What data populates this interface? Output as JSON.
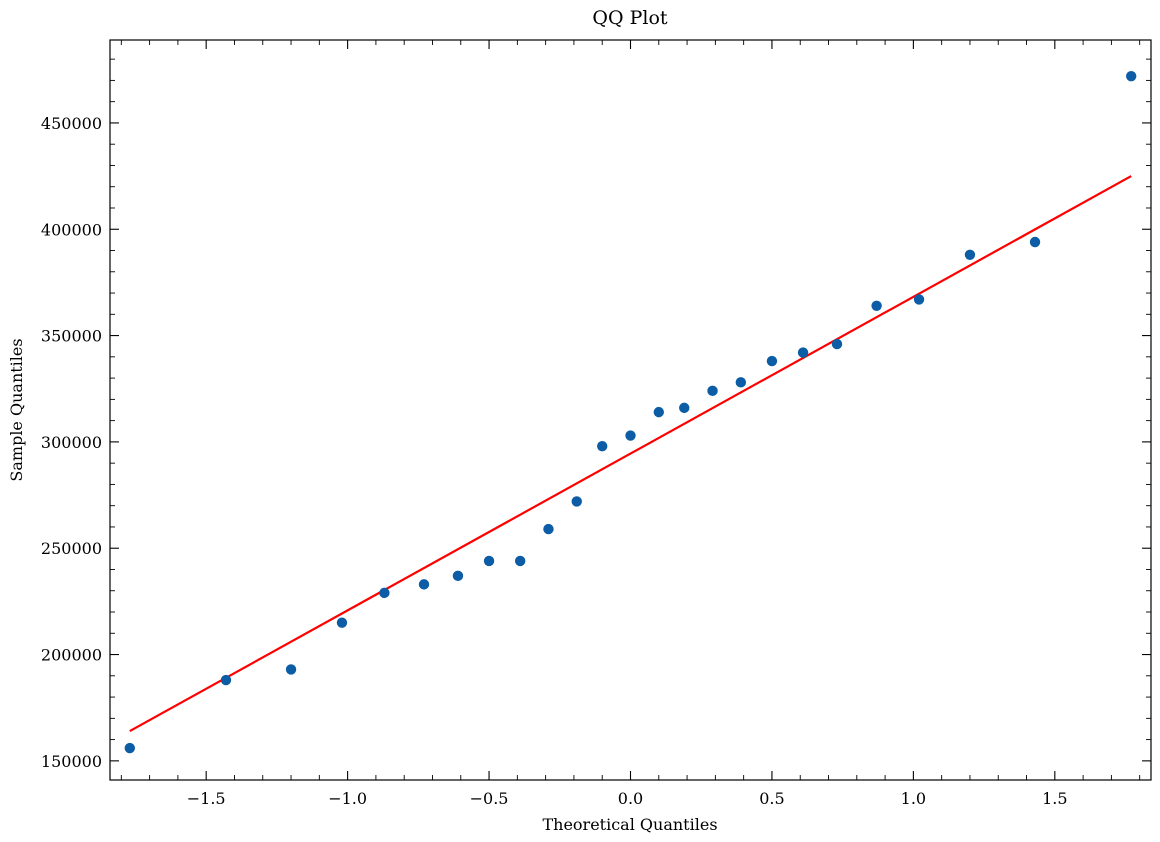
{
  "chart_data": {
    "type": "scatter",
    "title": "QQ Plot",
    "xlabel": "Theoretical Quantiles",
    "ylabel": "Sample Quantiles",
    "xlim": [
      -1.84,
      1.84
    ],
    "ylim": [
      141000,
      489000
    ],
    "x_ticks": [
      -1.5,
      -1.0,
      -0.5,
      0.0,
      0.5,
      1.0,
      1.5
    ],
    "x_tick_labels": [
      "−1.5",
      "−1.0",
      "−0.5",
      "0.0",
      "0.5",
      "1.0",
      "1.5"
    ],
    "x_minor_step": 0.1,
    "y_ticks": [
      150000,
      200000,
      250000,
      300000,
      350000,
      400000,
      450000
    ],
    "y_tick_labels": [
      "150000",
      "200000",
      "250000",
      "300000",
      "350000",
      "400000",
      "450000"
    ],
    "y_minor_step": 10000,
    "grid": false,
    "point_color": "#0c5da5",
    "line_color": "#ff0000",
    "series": [
      {
        "x": [
          -1.77,
          -1.43,
          -1.2,
          -1.02,
          -0.87,
          -0.73,
          -0.61,
          -0.5,
          -0.39,
          -0.29,
          -0.19,
          -0.1,
          0.0,
          0.1,
          0.19,
          0.29,
          0.39,
          0.5,
          0.61,
          0.73,
          0.87,
          1.02,
          1.2,
          1.43,
          1.77
        ],
        "y": [
          156000,
          188000,
          193000,
          215000,
          229000,
          233000,
          237000,
          244000,
          244000,
          259000,
          272000,
          298000,
          303000,
          314000,
          316000,
          324000,
          328000,
          338000,
          342000,
          346000,
          364000,
          367000,
          388000,
          394000,
          472000
        ]
      }
    ],
    "fit_line": {
      "x": [
        -1.77,
        1.77
      ],
      "y": [
        164000,
        425000
      ]
    }
  }
}
